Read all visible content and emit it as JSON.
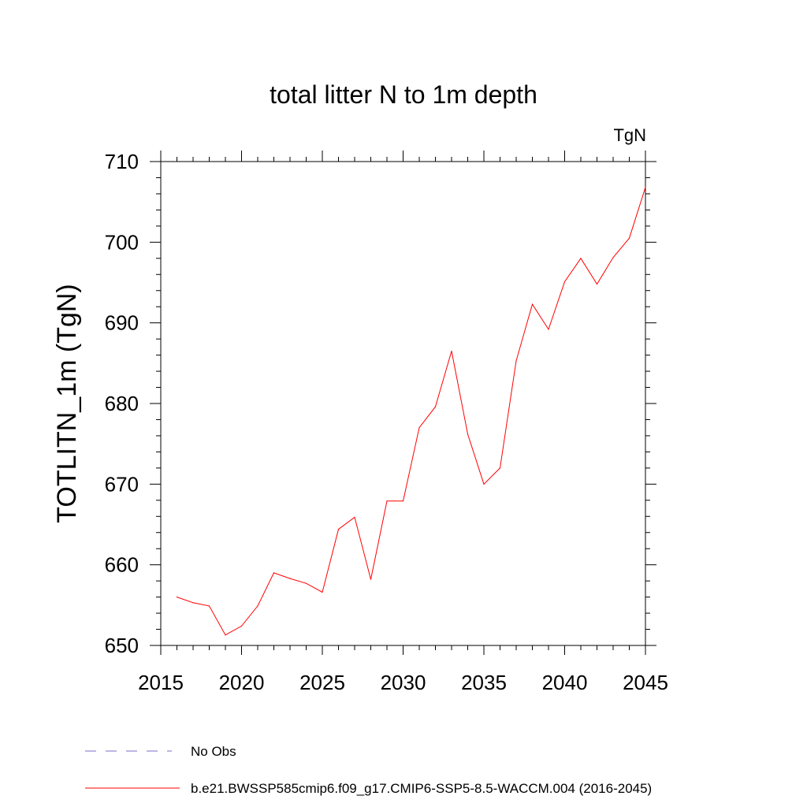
{
  "chart_data": {
    "type": "line",
    "title": "total litter N to 1m depth",
    "units": "TgN",
    "ylabel": "TOTLITN_1m  (TgN)",
    "xlabel": "",
    "xlim": [
      2015,
      2045
    ],
    "ylim": [
      650,
      710
    ],
    "xticks": [
      2015,
      2020,
      2025,
      2030,
      2035,
      2040,
      2045
    ],
    "yticks": [
      650,
      660,
      670,
      680,
      690,
      700,
      710
    ],
    "grid": false,
    "x": [
      2016,
      2017,
      2018,
      2019,
      2020,
      2021,
      2022,
      2023,
      2024,
      2025,
      2026,
      2027,
      2028,
      2029,
      2030,
      2031,
      2032,
      2033,
      2034,
      2035,
      2036,
      2037,
      2038,
      2039,
      2040,
      2041,
      2042,
      2043,
      2044,
      2045
    ],
    "series": [
      {
        "name": "b.e21.BWSSP585cmip6.f09_g17.CMIP6-SSP5-8.5-WACCM.004 (2016-2045)",
        "color": "#ff0000",
        "style": "solid",
        "values": [
          656.0,
          655.3,
          654.9,
          651.3,
          652.4,
          654.9,
          659.0,
          658.3,
          657.7,
          656.6,
          664.4,
          665.9,
          658.2,
          667.9,
          667.9,
          677.0,
          679.6,
          686.5,
          676.2,
          670.0,
          672.0,
          685.3,
          692.3,
          689.2,
          695.1,
          698.0,
          694.8,
          698.1,
          700.5,
          706.8
        ]
      }
    ],
    "legend": [
      {
        "label": "No Obs",
        "color": "#7b6cc4",
        "style": "dashed"
      },
      {
        "label": "b.e21.BWSSP585cmip6.f09_g17.CMIP6-SSP5-8.5-WACCM.004 (2016-2045)",
        "color": "#ff0000",
        "style": "solid"
      }
    ]
  }
}
